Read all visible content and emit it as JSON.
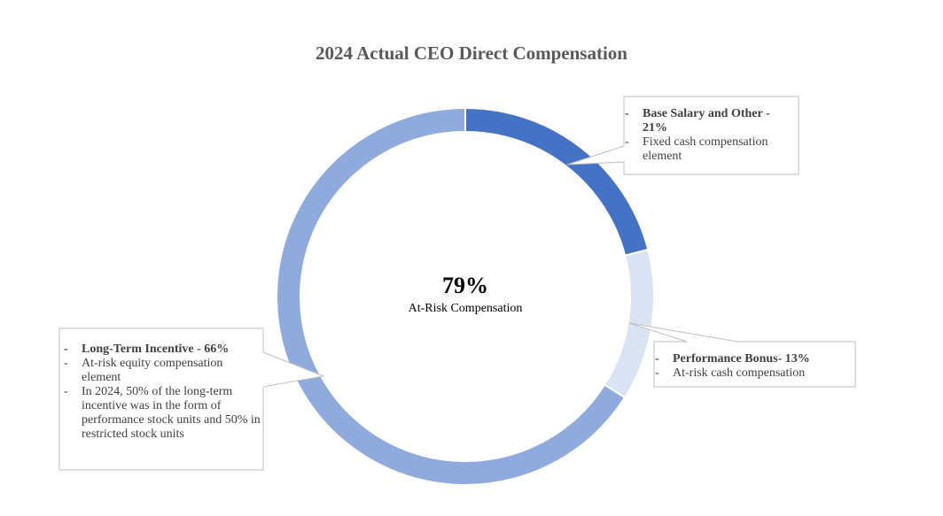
{
  "chart_data": {
    "type": "pie",
    "variant": "donut",
    "title": "2024 Actual CEO Direct Compensation",
    "center_value": "79%",
    "center_label": "At-Risk Compensation",
    "slices": [
      {
        "label": "Base Salary and Other",
        "value": 21,
        "color": "#4472C4",
        "callout": [
          "Base Salary and Other - 21%",
          "Fixed cash compensation element"
        ]
      },
      {
        "label": "Performance Bonus",
        "value": 13,
        "color": "#DAE3F3",
        "callout": [
          "Performance Bonus- 13%",
          "At-risk cash compensation"
        ]
      },
      {
        "label": "Long-Term Incentive",
        "value": 66,
        "color": "#8FAADC",
        "callout": [
          "Long-Term Incentive - 66%",
          "At-risk equity compensation element",
          "In 2024, 50% of the long-term incentive was in the form of performance stock units and 50% in restricted stock units"
        ]
      }
    ]
  }
}
